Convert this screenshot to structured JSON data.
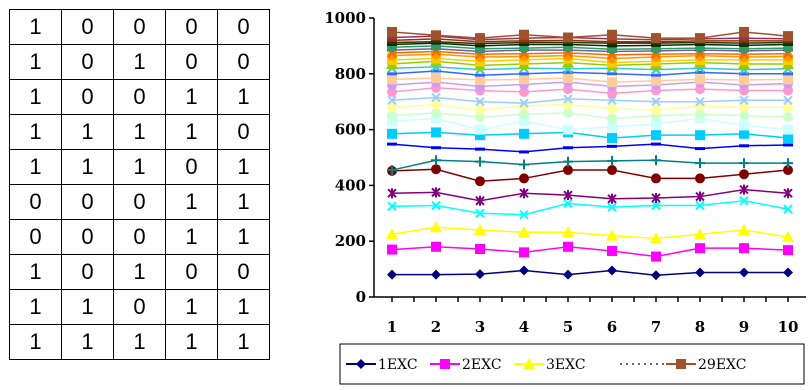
{
  "table": {
    "rows": [
      [
        "1",
        "0",
        "0",
        "0",
        "0"
      ],
      [
        "1",
        "0",
        "1",
        "0",
        "0"
      ],
      [
        "1",
        "0",
        "0",
        "1",
        "1"
      ],
      [
        "1",
        "1",
        "1",
        "1",
        "0"
      ],
      [
        "1",
        "1",
        "1",
        "0",
        "1"
      ],
      [
        "0",
        "0",
        "0",
        "1",
        "1"
      ],
      [
        "0",
        "0",
        "0",
        "1",
        "1"
      ],
      [
        "1",
        "0",
        "1",
        "0",
        "0"
      ],
      [
        "1",
        "1",
        "0",
        "1",
        "1"
      ],
      [
        "1",
        "1",
        "1",
        "1",
        "1"
      ]
    ]
  },
  "chart_data": {
    "type": "line",
    "title": "",
    "xlabel": "",
    "ylabel": "",
    "x": [
      1,
      2,
      3,
      4,
      5,
      6,
      7,
      8,
      9,
      10
    ],
    "xlim": [
      1,
      10
    ],
    "ylim": [
      0,
      1000
    ],
    "yticks": [
      0,
      200,
      400,
      600,
      800,
      1000
    ],
    "grid": false,
    "legend_position": "bottom",
    "series": [
      {
        "name": "1EXC",
        "color": "#000080",
        "marker": "diamond",
        "values": [
          80,
          80,
          82,
          95,
          80,
          95,
          78,
          88,
          88,
          88
        ]
      },
      {
        "name": "2EXC",
        "color": "#ff00ff",
        "marker": "square",
        "values": [
          170,
          180,
          172,
          160,
          180,
          165,
          145,
          175,
          175,
          168
        ]
      },
      {
        "name": "3EXC",
        "color": "#ffff00",
        "marker": "triangle",
        "values": [
          225,
          250,
          240,
          232,
          232,
          220,
          210,
          225,
          240,
          215
        ]
      },
      {
        "color": "#00ffff",
        "marker": "x",
        "values": [
          325,
          328,
          300,
          295,
          335,
          322,
          328,
          328,
          345,
          315
        ]
      },
      {
        "color": "#800080",
        "marker": "star",
        "values": [
          372,
          375,
          345,
          372,
          365,
          352,
          355,
          360,
          385,
          372
        ]
      },
      {
        "color": "#800000",
        "marker": "circle",
        "values": [
          452,
          458,
          415,
          425,
          455,
          455,
          425,
          425,
          440,
          455
        ]
      },
      {
        "color": "#008080",
        "marker": "plus",
        "values": [
          455,
          490,
          485,
          475,
          485,
          488,
          490,
          480,
          480,
          480
        ]
      },
      {
        "color": "#0000ff",
        "marker": "dash",
        "values": [
          548,
          535,
          530,
          520,
          535,
          540,
          548,
          532,
          542,
          545
        ]
      },
      {
        "color": "#00ccff",
        "marker": "square",
        "values": [
          585,
          590,
          580,
          585,
          590,
          570,
          580,
          580,
          585,
          570
        ]
      },
      {
        "color": "#ccffff",
        "marker": "square",
        "values": [
          630,
          640,
          600,
          630,
          600,
          610,
          620,
          640,
          615,
          600
        ]
      },
      {
        "color": "#ccffcc",
        "marker": "circle",
        "values": [
          650,
          660,
          645,
          655,
          660,
          640,
          650,
          655,
          650,
          645
        ]
      },
      {
        "color": "#ffff99",
        "marker": "circle",
        "values": [
          680,
          690,
          670,
          685,
          690,
          675,
          670,
          685,
          680,
          680
        ]
      },
      {
        "color": "#99ccff",
        "marker": "x",
        "values": [
          705,
          715,
          700,
          695,
          710,
          705,
          700,
          700,
          705,
          705
        ]
      },
      {
        "color": "#ff99cc",
        "marker": "circle",
        "values": [
          735,
          750,
          740,
          735,
          745,
          730,
          740,
          745,
          740,
          740
        ]
      },
      {
        "color": "#cc99ff",
        "marker": "circle",
        "values": [
          760,
          770,
          755,
          762,
          770,
          755,
          760,
          770,
          760,
          765
        ]
      },
      {
        "color": "#ffcc99",
        "marker": "square",
        "values": [
          780,
          785,
          778,
          780,
          785,
          770,
          775,
          780,
          778,
          780
        ]
      },
      {
        "color": "#3366ff",
        "marker": "dash",
        "values": [
          800,
          810,
          795,
          800,
          805,
          800,
          795,
          805,
          800,
          800
        ]
      },
      {
        "color": "#33cccc",
        "marker": "x",
        "values": [
          820,
          825,
          815,
          820,
          818,
          820,
          815,
          820,
          815,
          818
        ]
      },
      {
        "color": "#99cc00",
        "marker": "triangle",
        "values": [
          835,
          845,
          830,
          835,
          840,
          830,
          835,
          840,
          835,
          835
        ]
      },
      {
        "color": "#ffcc00",
        "marker": "square",
        "values": [
          850,
          855,
          845,
          850,
          855,
          840,
          845,
          850,
          850,
          850
        ]
      },
      {
        "color": "#ff9900",
        "marker": "circle",
        "values": [
          865,
          870,
          860,
          862,
          865,
          855,
          860,
          865,
          860,
          862
        ]
      },
      {
        "color": "#ff6600",
        "marker": "x",
        "values": [
          875,
          880,
          870,
          872,
          875,
          868,
          870,
          872,
          870,
          872
        ]
      },
      {
        "color": "#666699",
        "marker": "dash",
        "values": [
          885,
          890,
          880,
          885,
          885,
          880,
          882,
          885,
          882,
          885
        ]
      },
      {
        "color": "#339966",
        "marker": "circle",
        "values": [
          895,
          900,
          890,
          892,
          895,
          888,
          890,
          892,
          890,
          892
        ]
      },
      {
        "color": "#003300",
        "marker": "dash",
        "values": [
          905,
          910,
          900,
          905,
          905,
          900,
          902,
          905,
          902,
          905
        ]
      },
      {
        "color": "#333300",
        "marker": "dash",
        "values": [
          912,
          915,
          908,
          912,
          912,
          910,
          910,
          912,
          910,
          912
        ]
      },
      {
        "color": "#993300",
        "marker": "dash",
        "values": [
          920,
          925,
          915,
          918,
          920,
          915,
          915,
          918,
          918,
          918
        ]
      },
      {
        "color": "#993366",
        "marker": "dash",
        "values": [
          930,
          935,
          922,
          928,
          930,
          925,
          922,
          925,
          928,
          925
        ]
      },
      {
        "name": "29EXC",
        "color": "#a0522d",
        "marker": "square",
        "values": [
          950,
          938,
          928,
          940,
          930,
          940,
          928,
          928,
          950,
          935
        ]
      }
    ],
    "legend": {
      "entries": [
        {
          "label": "1EXC",
          "color": "#000080",
          "marker": "diamond"
        },
        {
          "label": "2EXC",
          "color": "#ff00ff",
          "marker": "square"
        },
        {
          "label": "3EXC",
          "color": "#ffff00",
          "marker": "triangle"
        },
        {
          "label": "29EXC",
          "color": "#a0522d",
          "marker": "square"
        }
      ]
    }
  }
}
